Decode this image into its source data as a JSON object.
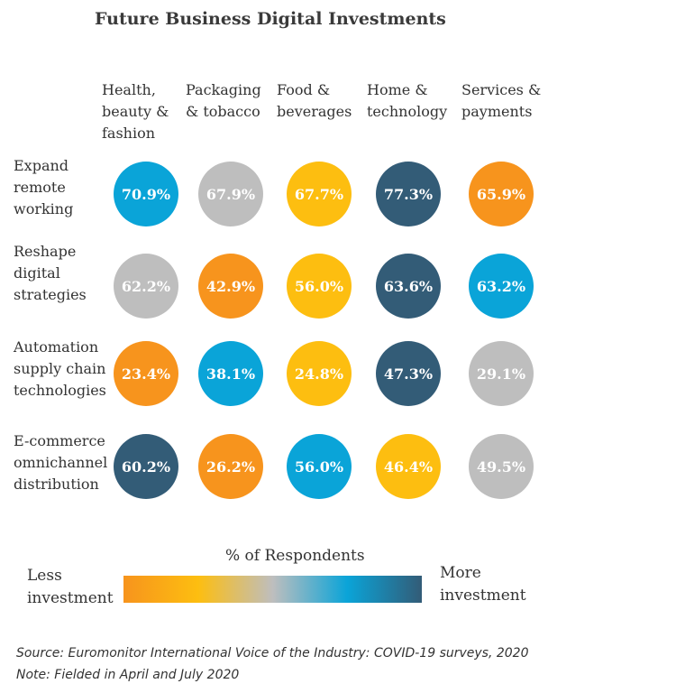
{
  "chart_data": {
    "type": "table",
    "title": "Future Business Digital Investments",
    "columns": [
      "Health, beauty & fashion",
      "Packaging & tobacco",
      "Food & beverages",
      "Home & technology",
      "Services & payments"
    ],
    "column_lines": [
      [
        "Health,",
        "beauty &",
        "fashion"
      ],
      [
        "Packaging",
        "& tobacco"
      ],
      [
        "Food &",
        "beverages"
      ],
      [
        "Home &",
        "technology"
      ],
      [
        "Services &",
        "payments"
      ]
    ],
    "rows": [
      {
        "label_lines": [
          "Expand",
          "remote",
          "working"
        ],
        "values": [
          "70.9%",
          "67.9%",
          "67.7%",
          "77.3%",
          "65.9%"
        ],
        "colors": [
          "blue",
          "grey",
          "yellow",
          "navy",
          "orange"
        ]
      },
      {
        "label_lines": [
          "Reshape",
          "digital",
          "strategies"
        ],
        "values": [
          "62.2%",
          "42.9%",
          "56.0%",
          "63.6%",
          "63.2%"
        ],
        "colors": [
          "grey",
          "orange",
          "yellow",
          "navy",
          "blue"
        ]
      },
      {
        "label_lines": [
          "Automation",
          "supply chain",
          "technologies"
        ],
        "values": [
          "23.4%",
          "38.1%",
          "24.8%",
          "47.3%",
          "29.1%"
        ],
        "colors": [
          "orange",
          "blue",
          "yellow",
          "navy",
          "grey"
        ]
      },
      {
        "label_lines": [
          "E-commerce",
          "omnichannel",
          "distribution"
        ],
        "values": [
          "60.2%",
          "26.2%",
          "56.0%",
          "46.4%",
          "49.5%"
        ],
        "colors": [
          "navy",
          "orange",
          "blue",
          "yellow",
          "grey"
        ]
      }
    ],
    "palette": {
      "orange": "#F7941D",
      "yellow": "#FDBE10",
      "grey": "#BEBEBE",
      "blue": "#0AA4D8",
      "navy": "#335C77"
    },
    "legend": {
      "title": "% of Respondents",
      "low_label_lines": [
        "Less",
        "investment"
      ],
      "high_label_lines": [
        "More",
        "investment"
      ],
      "gradient": [
        "#F7941D",
        "#FDBE10",
        "#BEBEBE",
        "#0AA4D8",
        "#335C77"
      ]
    }
  },
  "footer": {
    "source": "Source: Euromonitor International Voice of the Industry: COVID-19 surveys, 2020",
    "note": "Note: Fielded in April and July 2020"
  }
}
